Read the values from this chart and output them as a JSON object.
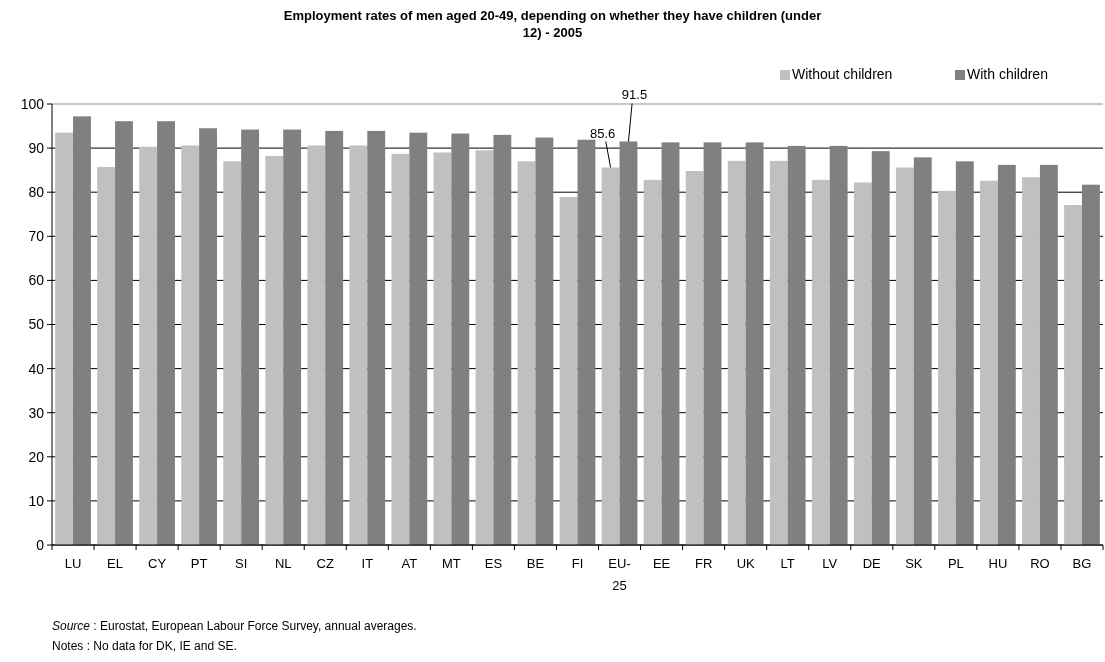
{
  "chart_data": {
    "type": "bar",
    "title": "Employment rates of men aged 20-49, depending on whether they have children (under 12) - 2005",
    "categories": [
      "LU",
      "EL",
      "CY",
      "PT",
      "SI",
      "NL",
      "CZ",
      "IT",
      "AT",
      "MT",
      "ES",
      "BE",
      "FI",
      "EU-25",
      "EE",
      "FR",
      "UK",
      "LT",
      "LV",
      "DE",
      "SK",
      "PL",
      "HU",
      "RO",
      "BG"
    ],
    "series": [
      {
        "name": "Without children",
        "color": "#c0c0c0",
        "values": [
          93.5,
          85.7,
          90.3,
          90.6,
          87.0,
          88.2,
          90.6,
          90.6,
          88.7,
          89.0,
          89.5,
          87.0,
          78.9,
          85.6,
          82.8,
          84.8,
          87.1,
          87.1,
          82.8,
          82.2,
          85.6,
          80.3,
          82.6,
          83.4,
          77.1
        ],
        "value_labels": [
          null,
          null,
          null,
          null,
          null,
          null,
          null,
          null,
          null,
          null,
          null,
          null,
          null,
          "85.6",
          null,
          null,
          null,
          null,
          null,
          null,
          null,
          null,
          null,
          null,
          null
        ]
      },
      {
        "name": "With children",
        "color": "#808080",
        "values": [
          97.2,
          96.1,
          96.1,
          94.5,
          94.2,
          94.2,
          93.9,
          93.9,
          93.5,
          93.3,
          93.0,
          92.4,
          91.9,
          91.5,
          91.3,
          91.3,
          91.3,
          90.5,
          90.5,
          89.3,
          87.9,
          87.0,
          86.2,
          86.2,
          81.7
        ],
        "value_labels": [
          null,
          null,
          null,
          null,
          null,
          null,
          null,
          null,
          null,
          null,
          null,
          null,
          null,
          "91.5",
          null,
          null,
          null,
          null,
          null,
          null,
          null,
          null,
          null,
          null,
          null
        ]
      }
    ],
    "ylim": [
      0,
      100
    ],
    "yticks": [
      0,
      10,
      20,
      30,
      40,
      50,
      60,
      70,
      80,
      90,
      100
    ],
    "grid": "y",
    "legend": "top right",
    "annotations": [
      "Source : Eurostat, European Labour Force Survey, annual averages.",
      "Notes : No data for DK, IE and SE."
    ]
  }
}
